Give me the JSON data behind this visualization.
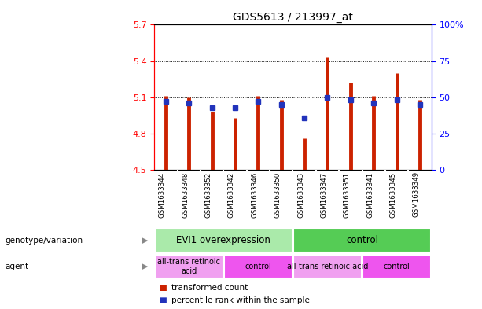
{
  "title": "GDS5613 / 213997_at",
  "samples": [
    "GSM1633344",
    "GSM1633348",
    "GSM1633352",
    "GSM1633342",
    "GSM1633346",
    "GSM1633350",
    "GSM1633343",
    "GSM1633347",
    "GSM1633351",
    "GSM1633341",
    "GSM1633345",
    "GSM1633349"
  ],
  "transformed_counts": [
    5.11,
    5.1,
    4.98,
    4.93,
    5.11,
    5.08,
    4.76,
    5.43,
    5.22,
    5.11,
    5.3,
    5.08
  ],
  "percentile_ranks": [
    47,
    46,
    43,
    43,
    47,
    45,
    36,
    50,
    48,
    46,
    48,
    45
  ],
  "ymin": 4.5,
  "ymax": 5.7,
  "yticks_left": [
    4.5,
    4.8,
    5.1,
    5.4,
    5.7
  ],
  "yticks_right": [
    0,
    25,
    50,
    75,
    100
  ],
  "hgrid_lines": [
    4.8,
    5.1,
    5.4
  ],
  "bar_color": "#cc2200",
  "dot_color": "#2233bb",
  "groups": [
    {
      "label": "EVI1 overexpression",
      "start": 0,
      "end": 6,
      "color": "#aaeaaa"
    },
    {
      "label": "control",
      "start": 6,
      "end": 12,
      "color": "#55cc55"
    }
  ],
  "agents": [
    {
      "label": "all-trans retinoic\nacid",
      "start": 0,
      "end": 3,
      "color": "#f0a0f0"
    },
    {
      "label": "control",
      "start": 3,
      "end": 6,
      "color": "#ee55ee"
    },
    {
      "label": "all-trans retinoic acid",
      "start": 6,
      "end": 9,
      "color": "#f0a0f0"
    },
    {
      "label": "control",
      "start": 9,
      "end": 12,
      "color": "#ee55ee"
    }
  ],
  "legend": [
    {
      "label": "transformed count",
      "color": "#cc2200"
    },
    {
      "label": "percentile rank within the sample",
      "color": "#2233bb"
    }
  ]
}
